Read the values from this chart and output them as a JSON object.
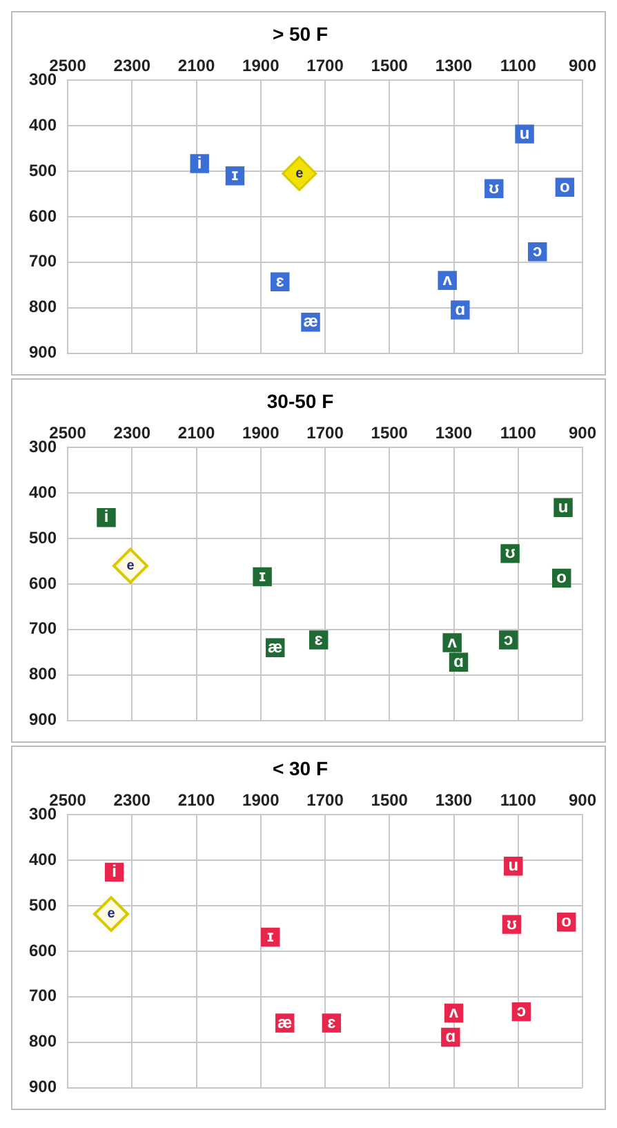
{
  "chart_data": [
    {
      "type": "scatter",
      "title": "> 50 F",
      "xlim": [
        2500,
        900
      ],
      "ylim": [
        900,
        300
      ],
      "xticks": [
        2500,
        2300,
        2100,
        1900,
        1700,
        1500,
        1300,
        1100,
        900
      ],
      "yticks": [
        300,
        400,
        500,
        600,
        700,
        800,
        900
      ],
      "grid": true,
      "series": [
        {
          "color": "#3b6fd6",
          "marker": "square",
          "x": [
            2090,
            1980,
            1840,
            1745,
            1320,
            1280,
            1175,
            1080,
            955,
            1040
          ],
          "values": [
            483,
            510,
            743,
            832,
            740,
            805,
            538,
            418,
            535,
            677
          ],
          "value_labels": [
            "i",
            "ɪ",
            "ɛ",
            "æ",
            "ʌ",
            "ɑ",
            "ʊ",
            "u",
            "o",
            "ɔ"
          ]
        },
        {
          "color": "#f2e200",
          "marker": "diamond",
          "x": [
            1780
          ],
          "values": [
            505
          ],
          "value_labels": [
            "e"
          ]
        }
      ]
    },
    {
      "type": "scatter",
      "title": "30-50 F",
      "xlim": [
        2500,
        900
      ],
      "ylim": [
        900,
        300
      ],
      "xticks": [
        2500,
        2300,
        2100,
        1900,
        1700,
        1500,
        1300,
        1100,
        900
      ],
      "yticks": [
        300,
        400,
        500,
        600,
        700,
        800,
        900
      ],
      "grid": true,
      "series": [
        {
          "color": "#1f6b33",
          "marker": "square",
          "x": [
            2380,
            1895,
            1855,
            1720,
            1305,
            1285,
            1125,
            960,
            965,
            1130
          ],
          "values": [
            454,
            584,
            740,
            723,
            729,
            772,
            533,
            432,
            587,
            723
          ],
          "value_labels": [
            "i",
            "ɪ",
            "æ",
            "ɛ",
            "ʌ",
            "ɑ",
            "ʊ",
            "u",
            "o",
            "ɔ"
          ]
        },
        {
          "color": "#fffbe0",
          "marker": "diamond",
          "x": [
            2305
          ],
          "values": [
            560
          ],
          "value_labels": [
            "e"
          ]
        }
      ]
    },
    {
      "type": "scatter",
      "title": "< 30 F",
      "xlim": [
        2500,
        900
      ],
      "ylim": [
        900,
        300
      ],
      "xticks": [
        2500,
        2300,
        2100,
        1900,
        1700,
        1500,
        1300,
        1100,
        900
      ],
      "yticks": [
        300,
        400,
        500,
        600,
        700,
        800,
        900
      ],
      "grid": true,
      "series": [
        {
          "color": "#e8264c",
          "marker": "square",
          "x": [
            2355,
            1870,
            1825,
            1680,
            1300,
            1310,
            1115,
            1120,
            950,
            1090
          ],
          "values": [
            426,
            569,
            758,
            758,
            736,
            789,
            413,
            541,
            536,
            733
          ],
          "value_labels": [
            "i",
            "ɪ",
            "æ",
            "ɛ",
            "ʌ",
            "ɑ",
            "u",
            "ʊ",
            "o",
            "ɔ"
          ]
        },
        {
          "color": "#fffbe0",
          "marker": "diamond",
          "x": [
            2365
          ],
          "values": [
            518
          ],
          "value_labels": [
            "e"
          ]
        }
      ]
    }
  ]
}
